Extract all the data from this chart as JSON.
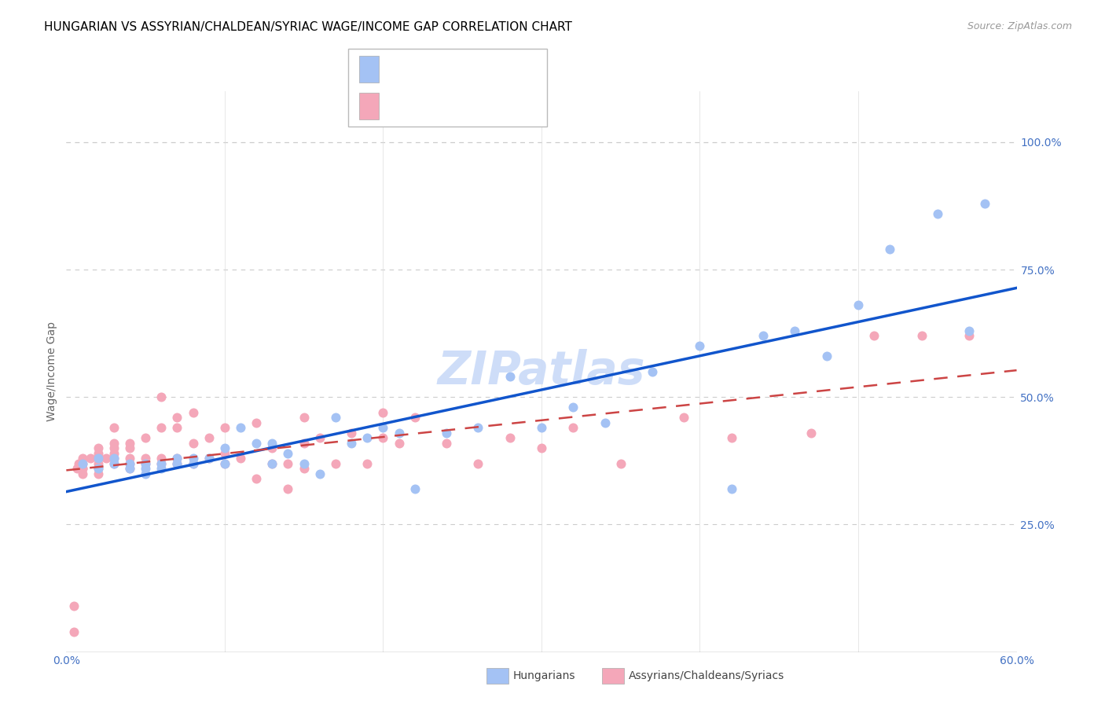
{
  "title": "HUNGARIAN VS ASSYRIAN/CHALDEAN/SYRIAC WAGE/INCOME GAP CORRELATION CHART",
  "source": "Source: ZipAtlas.com",
  "ylabel": "Wage/Income Gap",
  "xlim": [
    0.0,
    0.6
  ],
  "ylim": [
    0.0,
    1.1
  ],
  "ytick_positions": [
    0.25,
    0.5,
    0.75,
    1.0
  ],
  "yticklabels": [
    "25.0%",
    "50.0%",
    "75.0%",
    "100.0%"
  ],
  "xtick_positions": [
    0.0,
    0.1,
    0.2,
    0.3,
    0.4,
    0.5,
    0.6
  ],
  "xticklabels": [
    "0.0%",
    "",
    "",
    "",
    "",
    "",
    "60.0%"
  ],
  "blue_color": "#a4c2f4",
  "pink_color": "#f4a7b9",
  "blue_line_color": "#1155cc",
  "pink_line_color": "#cc4444",
  "watermark_text": "ZIPatlas",
  "watermark_color": "#c9daf8",
  "legend_label_blue": "Hungarians",
  "legend_label_pink": "Assyrians/Chaldeans/Syriacs",
  "blue_scatter_x": [
    0.01,
    0.02,
    0.02,
    0.03,
    0.03,
    0.04,
    0.04,
    0.05,
    0.05,
    0.05,
    0.06,
    0.06,
    0.07,
    0.07,
    0.08,
    0.08,
    0.09,
    0.1,
    0.1,
    0.11,
    0.12,
    0.13,
    0.13,
    0.14,
    0.15,
    0.16,
    0.17,
    0.18,
    0.19,
    0.2,
    0.21,
    0.22,
    0.24,
    0.26,
    0.28,
    0.3,
    0.32,
    0.34,
    0.37,
    0.4,
    0.42,
    0.44,
    0.46,
    0.48,
    0.5,
    0.52,
    0.55,
    0.57,
    0.58
  ],
  "blue_scatter_y": [
    0.37,
    0.36,
    0.38,
    0.37,
    0.38,
    0.36,
    0.37,
    0.35,
    0.37,
    0.36,
    0.37,
    0.36,
    0.38,
    0.37,
    0.38,
    0.37,
    0.38,
    0.37,
    0.4,
    0.44,
    0.41,
    0.37,
    0.41,
    0.39,
    0.37,
    0.35,
    0.46,
    0.41,
    0.42,
    0.44,
    0.43,
    0.32,
    0.43,
    0.44,
    0.54,
    0.44,
    0.48,
    0.45,
    0.55,
    0.6,
    0.32,
    0.62,
    0.63,
    0.58,
    0.68,
    0.79,
    0.86,
    0.63,
    0.88
  ],
  "pink_scatter_x": [
    0.005,
    0.005,
    0.007,
    0.008,
    0.01,
    0.01,
    0.01,
    0.01,
    0.01,
    0.015,
    0.02,
    0.02,
    0.02,
    0.02,
    0.02,
    0.02,
    0.025,
    0.03,
    0.03,
    0.03,
    0.03,
    0.03,
    0.03,
    0.04,
    0.04,
    0.04,
    0.04,
    0.04,
    0.05,
    0.05,
    0.05,
    0.06,
    0.06,
    0.06,
    0.06,
    0.07,
    0.07,
    0.07,
    0.07,
    0.08,
    0.08,
    0.08,
    0.09,
    0.09,
    0.1,
    0.1,
    0.1,
    0.11,
    0.12,
    0.12,
    0.13,
    0.13,
    0.14,
    0.14,
    0.15,
    0.15,
    0.15,
    0.16,
    0.17,
    0.18,
    0.19,
    0.2,
    0.2,
    0.21,
    0.22,
    0.24,
    0.26,
    0.28,
    0.3,
    0.32,
    0.35,
    0.39,
    0.42,
    0.47,
    0.51,
    0.54,
    0.57
  ],
  "pink_scatter_y": [
    0.04,
    0.09,
    0.36,
    0.37,
    0.36,
    0.35,
    0.37,
    0.36,
    0.38,
    0.38,
    0.35,
    0.36,
    0.37,
    0.38,
    0.39,
    0.4,
    0.38,
    0.37,
    0.38,
    0.39,
    0.4,
    0.41,
    0.44,
    0.36,
    0.37,
    0.38,
    0.4,
    0.41,
    0.37,
    0.38,
    0.42,
    0.37,
    0.38,
    0.44,
    0.5,
    0.37,
    0.38,
    0.44,
    0.46,
    0.37,
    0.41,
    0.47,
    0.38,
    0.42,
    0.37,
    0.39,
    0.44,
    0.38,
    0.34,
    0.45,
    0.37,
    0.4,
    0.37,
    0.32,
    0.36,
    0.41,
    0.46,
    0.42,
    0.37,
    0.43,
    0.37,
    0.42,
    0.47,
    0.41,
    0.46,
    0.41,
    0.37,
    0.42,
    0.4,
    0.44,
    0.37,
    0.46,
    0.42,
    0.43,
    0.62,
    0.62,
    0.62
  ],
  "background_color": "#ffffff",
  "grid_color": "#cccccc",
  "tick_label_color": "#4472c4",
  "axis_label_color": "#666666",
  "title_color": "#000000",
  "title_fontsize": 11,
  "tick_fontsize": 10,
  "ylabel_fontsize": 10
}
